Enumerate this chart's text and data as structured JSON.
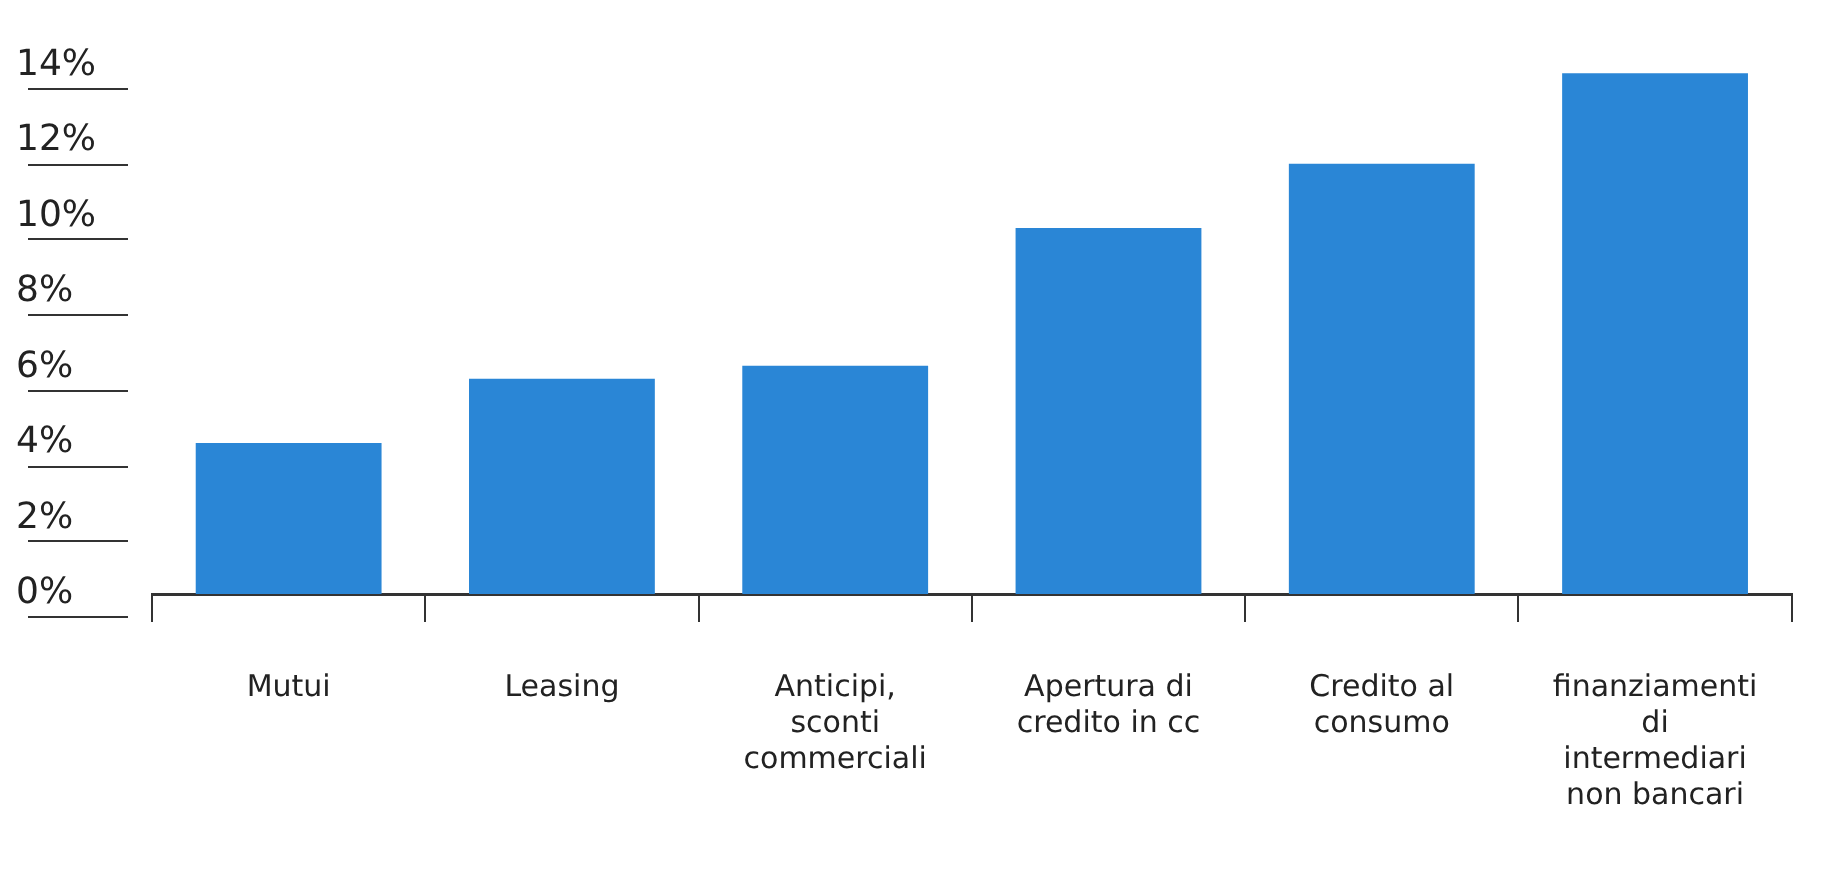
{
  "chart_data": {
    "type": "bar",
    "categories": [
      "Mutui",
      "Leasing",
      "Anticipi, sconti commerciali",
      "Apertura di credito in cc",
      "Credito al consumo",
      "finanziamenti di intermediari non bancari"
    ],
    "values": [
      4.0,
      5.7,
      6.05,
      9.7,
      11.4,
      13.8
    ],
    "color": "#2a86d6",
    "ylim": [
      0,
      14
    ],
    "yticks": [
      {
        "value": 0,
        "label": "0%"
      },
      {
        "value": 2,
        "label": "2%"
      },
      {
        "value": 4,
        "label": "4%"
      },
      {
        "value": 6,
        "label": "6%"
      },
      {
        "value": 8,
        "label": "8%"
      },
      {
        "value": 10,
        "label": "10%"
      },
      {
        "value": 12,
        "label": "12%"
      },
      {
        "value": 14,
        "label": "14%"
      }
    ],
    "grid": false,
    "legend": false
  }
}
